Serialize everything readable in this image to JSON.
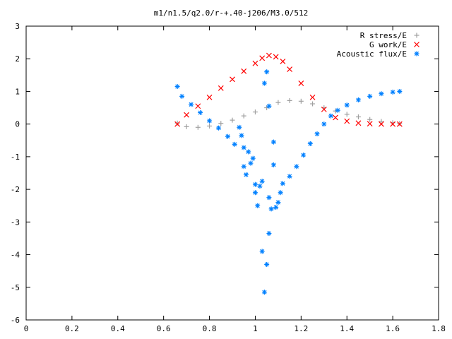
{
  "chart_data": {
    "type": "scatter",
    "title": "m1/n1.5/q2.0/r-+.40-j206/M3.0/512",
    "xlabel": "",
    "ylabel": "",
    "xlim": [
      0,
      1.8
    ],
    "ylim": [
      -6,
      3
    ],
    "xticks": [
      0,
      0.2,
      0.4,
      0.6,
      0.8,
      1,
      1.2,
      1.4,
      1.6,
      1.8
    ],
    "xtick_labels": [
      "0",
      "0.2",
      "0.4",
      "0.6",
      "0.8",
      "1",
      "1.2",
      "1.4",
      "1.6",
      "1.8"
    ],
    "yticks": [
      -6,
      -5,
      -4,
      -3,
      -2,
      -1,
      0,
      1,
      2,
      3
    ],
    "ytick_labels": [
      "-6",
      "-5",
      "-4",
      "-3",
      "-2",
      "-1",
      "0",
      "1",
      "2",
      "3"
    ],
    "grid": false,
    "legend_position": "top-right",
    "series": [
      {
        "name": "R stress/E",
        "marker": "+",
        "color": "#a0a0a0",
        "points": [
          [
            0.66,
            0.03
          ],
          [
            0.7,
            -0.08
          ],
          [
            0.75,
            -0.1
          ],
          [
            0.8,
            -0.06
          ],
          [
            0.85,
            0.02
          ],
          [
            0.9,
            0.12
          ],
          [
            0.95,
            0.25
          ],
          [
            1.0,
            0.37
          ],
          [
            1.05,
            0.5
          ],
          [
            1.1,
            0.66
          ],
          [
            1.15,
            0.72
          ],
          [
            1.2,
            0.7
          ],
          [
            1.25,
            0.62
          ],
          [
            1.3,
            0.5
          ],
          [
            1.35,
            0.4
          ],
          [
            1.4,
            0.3
          ],
          [
            1.45,
            0.22
          ],
          [
            1.5,
            0.14
          ],
          [
            1.55,
            0.08
          ],
          [
            1.6,
            0.04
          ],
          [
            1.63,
            0.02
          ]
        ]
      },
      {
        "name": "G work/E",
        "marker": "x",
        "color": "#ff0000",
        "points": [
          [
            0.66,
            0.0
          ],
          [
            0.7,
            0.28
          ],
          [
            0.75,
            0.55
          ],
          [
            0.8,
            0.82
          ],
          [
            0.85,
            1.1
          ],
          [
            0.9,
            1.37
          ],
          [
            0.95,
            1.62
          ],
          [
            1.0,
            1.86
          ],
          [
            1.03,
            2.02
          ],
          [
            1.06,
            2.1
          ],
          [
            1.09,
            2.06
          ],
          [
            1.12,
            1.92
          ],
          [
            1.15,
            1.68
          ],
          [
            1.2,
            1.25
          ],
          [
            1.25,
            0.82
          ],
          [
            1.3,
            0.45
          ],
          [
            1.35,
            0.2
          ],
          [
            1.4,
            0.09
          ],
          [
            1.45,
            0.03
          ],
          [
            1.5,
            0.01
          ],
          [
            1.55,
            0.0
          ],
          [
            1.6,
            0.0
          ],
          [
            1.63,
            0.0
          ]
        ]
      },
      {
        "name": "Acoustic flux/E",
        "marker": "*",
        "color": "#0080ff",
        "points": [
          [
            0.66,
            1.15
          ],
          [
            0.68,
            0.85
          ],
          [
            0.72,
            0.6
          ],
          [
            0.76,
            0.35
          ],
          [
            0.8,
            0.1
          ],
          [
            0.84,
            -0.12
          ],
          [
            0.88,
            -0.38
          ],
          [
            0.91,
            -0.62
          ],
          [
            0.93,
            -0.1
          ],
          [
            0.94,
            -0.35
          ],
          [
            0.95,
            -0.72
          ],
          [
            0.95,
            -1.3
          ],
          [
            0.96,
            -1.55
          ],
          [
            0.97,
            -0.85
          ],
          [
            0.98,
            -1.2
          ],
          [
            0.99,
            -1.05
          ],
          [
            1.0,
            -1.85
          ],
          [
            1.0,
            -2.1
          ],
          [
            1.01,
            -2.5
          ],
          [
            1.02,
            -1.9
          ],
          [
            1.03,
            -1.75
          ],
          [
            1.03,
            -3.9
          ],
          [
            1.04,
            1.25
          ],
          [
            1.04,
            -5.15
          ],
          [
            1.05,
            1.6
          ],
          [
            1.05,
            -4.3
          ],
          [
            1.06,
            0.55
          ],
          [
            1.06,
            -3.35
          ],
          [
            1.06,
            -2.25
          ],
          [
            1.07,
            -2.6
          ],
          [
            1.08,
            -1.25
          ],
          [
            1.08,
            -0.55
          ],
          [
            1.09,
            -2.55
          ],
          [
            1.1,
            -2.4
          ],
          [
            1.11,
            -2.1
          ],
          [
            1.12,
            -1.82
          ],
          [
            1.15,
            -1.6
          ],
          [
            1.18,
            -1.3
          ],
          [
            1.21,
            -0.95
          ],
          [
            1.24,
            -0.6
          ],
          [
            1.27,
            -0.3
          ],
          [
            1.3,
            0.0
          ],
          [
            1.33,
            0.25
          ],
          [
            1.36,
            0.42
          ],
          [
            1.4,
            0.58
          ],
          [
            1.45,
            0.74
          ],
          [
            1.5,
            0.85
          ],
          [
            1.55,
            0.93
          ],
          [
            1.6,
            0.98
          ],
          [
            1.63,
            1.0
          ]
        ]
      }
    ]
  }
}
